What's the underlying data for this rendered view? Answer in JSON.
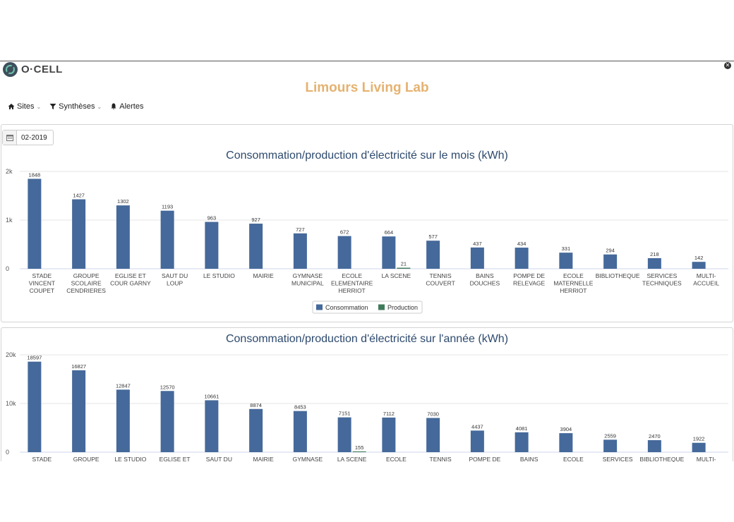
{
  "app": {
    "logo_text": "O·CELL",
    "title": "Limours Living Lab"
  },
  "menu": {
    "sites": "Sites",
    "syntheses": "Synthèses",
    "alertes": "Alertes"
  },
  "datepicker": {
    "value": "02-2019"
  },
  "colors": {
    "consommation": "#45699a",
    "production": "#3f7a5a",
    "title": "#e5b270"
  },
  "chart_data": [
    {
      "type": "bar",
      "title": "Consommation/production d'électricité sur le mois (kWh)",
      "categories": [
        [
          "STADE",
          "VINCENT",
          "COUPET"
        ],
        [
          "GROUPE",
          "SCOLAIRE",
          "CENDRIERES"
        ],
        [
          "EGLISE ET",
          "COUR GARNY"
        ],
        [
          "SAUT DU",
          "LOUP"
        ],
        [
          "LE STUDIO"
        ],
        [
          "MAIRIE"
        ],
        [
          "GYMNASE",
          "MUNICIPAL"
        ],
        [
          "ECOLE",
          "ELEMENTAIRE",
          "HERRIOT"
        ],
        [
          "LA SCENE"
        ],
        [
          "TENNIS",
          "COUVERT"
        ],
        [
          "BAINS",
          "DOUCHES"
        ],
        [
          "POMPE DE",
          "RELEVAGE"
        ],
        [
          "ECOLE",
          "MATERNELLE",
          "HERRIOT"
        ],
        [
          "BIBLIOTHEQUE"
        ],
        [
          "SERVICES",
          "TECHNIQUES"
        ],
        [
          "MULTI-",
          "ACCUEIL"
        ]
      ],
      "series": [
        {
          "name": "Consommation",
          "values": [
            1848,
            1427,
            1302,
            1193,
            963,
            927,
            727,
            672,
            664,
            577,
            437,
            434,
            331,
            294,
            218,
            142
          ]
        },
        {
          "name": "Production",
          "values": [
            0,
            0,
            0,
            0,
            0,
            0,
            0,
            0,
            21,
            0,
            0,
            0,
            0,
            0,
            0,
            0
          ]
        }
      ],
      "y_ticks": [
        {
          "value": 0,
          "label": "0"
        },
        {
          "value": 1000,
          "label": "1k"
        },
        {
          "value": 2000,
          "label": "2k"
        }
      ],
      "ylim": [
        0,
        2000
      ],
      "grid": true,
      "legend": "bottom-center"
    },
    {
      "type": "bar",
      "title": "Consommation/production d'électricité sur l'année (kWh)",
      "categories": [
        [
          "STADE"
        ],
        [
          "GROUPE"
        ],
        [
          "LE STUDIO"
        ],
        [
          "EGLISE ET"
        ],
        [
          "SAUT DU"
        ],
        [
          "MAIRIE"
        ],
        [
          "GYMNASE"
        ],
        [
          "LA SCENE"
        ],
        [
          "ECOLE"
        ],
        [
          "TENNIS"
        ],
        [
          "POMPE DE"
        ],
        [
          "BAINS"
        ],
        [
          "ECOLE"
        ],
        [
          "SERVICES"
        ],
        [
          "BIBLIOTHEQUE"
        ],
        [
          "MULTI-"
        ]
      ],
      "series": [
        {
          "name": "Consommation",
          "values": [
            18597,
            16827,
            12847,
            12570,
            10661,
            8874,
            8453,
            7151,
            7112,
            7030,
            4437,
            4081,
            3904,
            2559,
            2470,
            1922
          ]
        },
        {
          "name": "Production",
          "values": [
            0,
            0,
            0,
            0,
            0,
            0,
            0,
            155,
            0,
            0,
            0,
            0,
            0,
            0,
            0,
            0
          ]
        }
      ],
      "y_ticks": [
        {
          "value": 0,
          "label": "0"
        },
        {
          "value": 10000,
          "label": "10k"
        },
        {
          "value": 20000,
          "label": "20k"
        }
      ],
      "ylim": [
        0,
        20000
      ],
      "grid": true,
      "legend": ""
    }
  ]
}
